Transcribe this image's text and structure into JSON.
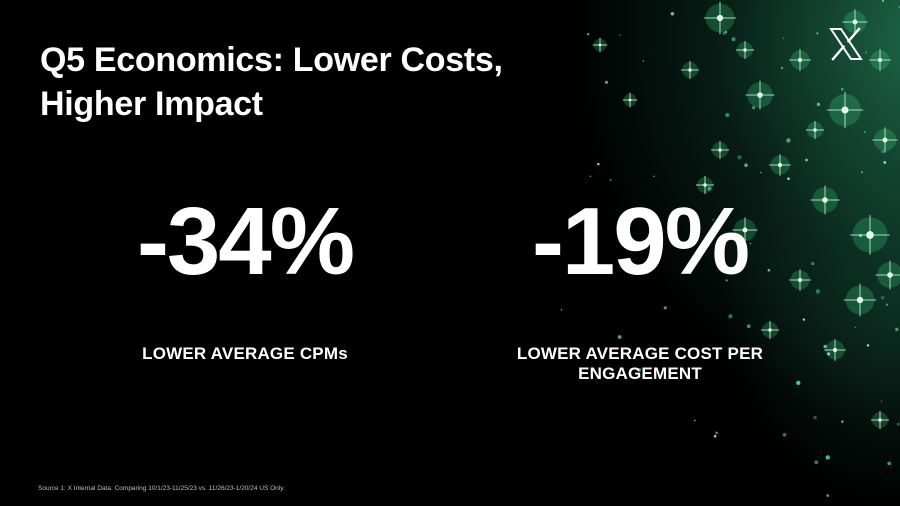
{
  "slide": {
    "title_line1": "Q5 Economics: Lower Costs,",
    "title_line2": "Higher Impact",
    "logo": "x-logo-icon",
    "accent_color": "#3ddc84",
    "stats": [
      {
        "value": "-34%",
        "label": "LOWER AVERAGE CPMs"
      },
      {
        "value": "-19%",
        "label_line1": "LOWER AVERAGE COST PER",
        "label_line2": "ENGAGEMENT"
      }
    ],
    "footnote": "Source 1: X Internal Data. Comparing 10/1/23-11/25/23 vs. 11/26/23-1/20/24 US Only."
  }
}
